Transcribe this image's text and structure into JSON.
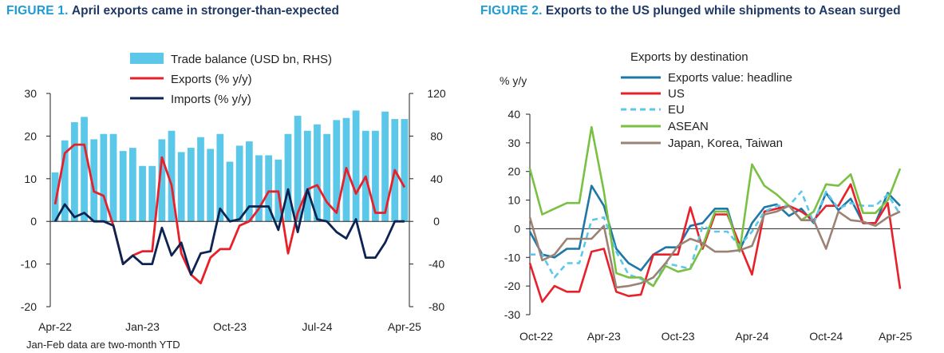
{
  "figure1": {
    "label": "FIGURE 1.",
    "title": "April exports came in stronger-than-expected",
    "footnote": "Jan-Feb data are two-month YTD"
  },
  "figure2": {
    "label": "FIGURE 2.",
    "title": "Exports to the US plunged while shipments to Asean surged"
  },
  "chart_data": [
    {
      "type": "bar+line",
      "title": "April exports came in stronger-than-expected",
      "x": [
        "Apr-22",
        "May-22",
        "Jun-22",
        "Jul-22",
        "Aug-22",
        "Sep-22",
        "Oct-22",
        "Nov-22",
        "Dec-22",
        "Jan-23",
        "Feb-23",
        "Mar-23",
        "Apr-23",
        "May-23",
        "Jun-23",
        "Jul-23",
        "Aug-23",
        "Sep-23",
        "Oct-23",
        "Nov-23",
        "Dec-23",
        "Jan-24",
        "Feb-24",
        "Mar-24",
        "Apr-24",
        "May-24",
        "Jun-24",
        "Jul-24",
        "Aug-24",
        "Sep-24",
        "Oct-24",
        "Nov-24",
        "Dec-24",
        "Jan-25",
        "Feb-25",
        "Mar-25",
        "Apr-25"
      ],
      "x_tick_labels": [
        "Apr-22",
        "Jan-23",
        "Oct-23",
        "Jul-24",
        "Apr-25"
      ],
      "y_left": {
        "min": -20,
        "max": 30,
        "ticks": [
          -20,
          -10,
          0,
          10,
          20,
          30
        ]
      },
      "y_right": {
        "min": -80,
        "max": 120,
        "ticks": [
          -80,
          -40,
          0,
          40,
          80,
          120
        ]
      },
      "legend_position": "top-center",
      "series": [
        {
          "name": "Trade balance (USD bn, RHS)",
          "type": "bar",
          "axis": "right",
          "color": "#5bc8ea",
          "values": [
            46,
            76,
            93,
            98,
            77,
            82,
            82,
            66,
            69,
            52,
            52,
            77,
            85,
            65,
            69,
            79,
            68,
            82,
            56,
            71,
            75,
            62,
            62,
            58,
            82,
            99,
            85,
            91,
            82,
            95,
            97,
            104,
            85,
            85,
            103,
            96,
            96
          ]
        },
        {
          "name": "Exports (% y/y)",
          "type": "line",
          "axis": "left",
          "color": "#e8202a",
          "values": [
            4,
            16,
            18,
            18,
            7,
            6,
            -1,
            -10,
            -8,
            -7,
            -7,
            15,
            8.5,
            -7.5,
            -12.5,
            -14.5,
            -8.5,
            -6.5,
            -6.5,
            -1,
            0,
            3,
            7,
            7,
            -7.5,
            2,
            7.5,
            8.5,
            4.5,
            2,
            12.5,
            6.5,
            10.5,
            2,
            2,
            12,
            8
          ]
        },
        {
          "name": "Imports (% y/y)",
          "type": "line",
          "axis": "left",
          "color": "#0d2452",
          "values": [
            0,
            4,
            1,
            2,
            0,
            0,
            -1,
            -10,
            -8,
            -10,
            -10,
            -1.5,
            -8,
            -5,
            -12.5,
            -7.5,
            -7,
            3,
            0,
            0.5,
            3.5,
            3.5,
            3.5,
            -2,
            7.5,
            -2.5,
            7.5,
            0.5,
            0,
            -2.5,
            -4,
            0.5,
            -8.5,
            -8.5,
            -5,
            0,
            0
          ]
        }
      ]
    },
    {
      "type": "line",
      "title": "Exports to the US plunged while shipments to Asean surged",
      "legend_title": "Exports by destination",
      "ylabel": "% y/y",
      "x": [
        "Oct-22",
        "Nov-22",
        "Dec-22",
        "Jan-23",
        "Feb-23",
        "Mar-23",
        "Apr-23",
        "May-23",
        "Jun-23",
        "Jul-23",
        "Aug-23",
        "Sep-23",
        "Oct-23",
        "Nov-23",
        "Dec-23",
        "Jan-24",
        "Feb-24",
        "Mar-24",
        "Apr-24",
        "May-24",
        "Jun-24",
        "Jul-24",
        "Aug-24",
        "Sep-24",
        "Oct-24",
        "Nov-24",
        "Dec-24",
        "Jan-25",
        "Feb-25",
        "Mar-25",
        "Apr-25"
      ],
      "x_tick_labels": [
        "Oct-22",
        "Apr-23",
        "Oct-23",
        "Apr-24",
        "Oct-24",
        "Apr-25"
      ],
      "y": {
        "min": -30,
        "max": 40,
        "ticks": [
          -30,
          -20,
          -10,
          0,
          10,
          20,
          30,
          40
        ]
      },
      "legend_position": "top-center",
      "series": [
        {
          "name": "Exports value: headline",
          "color": "#1f77a8",
          "dash": false,
          "values": [
            -1,
            -9,
            -10,
            -7,
            -7,
            15,
            8,
            -7,
            -12,
            -14.5,
            -9,
            -6.5,
            -6.5,
            1,
            2,
            7,
            7,
            -7.5,
            2,
            7.5,
            8.5,
            4.5,
            7,
            2,
            12.5,
            6.5,
            10.5,
            2,
            2,
            12.5,
            8
          ]
        },
        {
          "name": "US",
          "color": "#e8202a",
          "dash": false,
          "values": [
            -12,
            -25.5,
            -20,
            -22,
            -22,
            -8,
            -7,
            -22,
            -23.5,
            -23,
            -9,
            -9,
            -9,
            7.5,
            -7,
            5,
            5,
            -5.5,
            -16,
            6,
            7,
            8,
            6,
            3,
            8,
            8,
            15.5,
            2,
            2,
            9,
            -21
          ]
        },
        {
          "name": "EU",
          "color": "#5bc8ea",
          "dash": true,
          "values": [
            -9,
            -9,
            -17,
            -12,
            -12,
            3,
            4,
            -8,
            -16,
            -17.5,
            -20,
            -12,
            -13,
            -14,
            1,
            -1,
            -1,
            -6,
            -1,
            6,
            8,
            8,
            13,
            2,
            13,
            7,
            9,
            8,
            8,
            12,
            5
          ]
        },
        {
          "name": "ASEAN",
          "color": "#7ac143",
          "dash": false,
          "values": [
            21,
            5,
            7,
            9,
            9,
            35.5,
            13,
            -15.5,
            -17,
            -17,
            -20,
            -13,
            -15,
            -14,
            -6,
            6,
            6,
            -8,
            22.5,
            15,
            12,
            8,
            3,
            6,
            15.5,
            15,
            19,
            5.5,
            5.5,
            10,
            21
          ]
        },
        {
          "name": "Japan, Korea, Taiwan",
          "color": "#9c8275",
          "dash": false,
          "values": [
            4,
            -11,
            -9,
            -3.5,
            -3.5,
            -3.5,
            1,
            -20.5,
            -20,
            -19,
            -17,
            -12,
            -6,
            -3.5,
            -5,
            -8,
            -8,
            -7.5,
            -6,
            5,
            6,
            8,
            3,
            3,
            -7,
            6,
            3,
            2.5,
            1,
            4,
            6
          ]
        }
      ]
    }
  ]
}
